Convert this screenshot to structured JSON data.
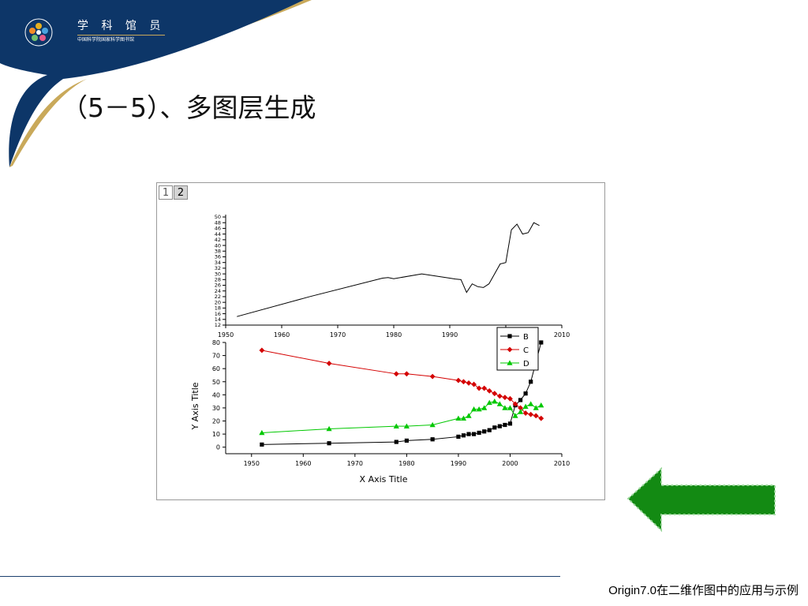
{
  "header": {
    "logo_name": "学 科 馆 员",
    "logo_sub": "中国科学院国家科学图书馆",
    "colors": {
      "banner": "#0d3668",
      "gold": "#c9a95a"
    }
  },
  "slide": {
    "title": "（5－5）、多图层生成",
    "footer": "Origin7.0在二维作图中的应用与示例"
  },
  "graph_window": {
    "layer_tabs": [
      "1",
      "2"
    ]
  },
  "nav": {
    "back_icon": "arrow-left-icon",
    "color": "#138a13"
  },
  "chart_data": [
    {
      "type": "line",
      "layer": 1,
      "xlim": [
        1950,
        2010
      ],
      "ylim": [
        12,
        50
      ],
      "x_ticks": [
        1950,
        1960,
        1970,
        1980,
        1990,
        2000,
        2010
      ],
      "y_ticks": [
        12,
        14,
        16,
        18,
        20,
        22,
        24,
        26,
        28,
        30,
        32,
        34,
        36,
        38,
        40,
        42,
        44,
        46,
        48,
        50
      ],
      "series": [
        {
          "x": [
            1952,
            1965,
            1978,
            1979,
            1980,
            1985,
            1990,
            1991,
            1992,
            1993,
            1994,
            1995,
            1996,
            1997,
            1998,
            1999,
            2000,
            2001,
            2002,
            2003,
            2004,
            2005,
            2006
          ],
          "y": [
            15,
            22,
            28.5,
            28.7,
            28.3,
            30,
            28.5,
            28.2,
            28,
            23.5,
            26.5,
            25.5,
            25.2,
            26.5,
            30,
            33.5,
            34,
            45.5,
            47.5,
            44,
            44.5,
            48,
            47
          ],
          "color": "#000000"
        }
      ]
    },
    {
      "type": "line",
      "layer": 2,
      "xlim": [
        1945,
        2010
      ],
      "ylim": [
        -5,
        80
      ],
      "x_ticks": [
        1950,
        1960,
        1970,
        1980,
        1990,
        2000,
        2010
      ],
      "y_ticks": [
        0,
        10,
        20,
        30,
        40,
        50,
        60,
        70,
        80
      ],
      "xlabel": "X Axis Title",
      "ylabel": "Y Axis Title",
      "legend": "top-right",
      "series": [
        {
          "name": "B",
          "color": "#000000",
          "marker": "square",
          "x": [
            1952,
            1965,
            1978,
            1980,
            1985,
            1990,
            1991,
            1992,
            1993,
            1994,
            1995,
            1996,
            1997,
            1998,
            1999,
            2000,
            2001,
            2002,
            2003,
            2004,
            2006
          ],
          "y": [
            2,
            3,
            4,
            5,
            6,
            8,
            9,
            10,
            10,
            11,
            12,
            13,
            15,
            16,
            17,
            18,
            32,
            36,
            41,
            50,
            80
          ]
        },
        {
          "name": "C",
          "color": "#d40000",
          "marker": "diamond",
          "x": [
            1952,
            1965,
            1978,
            1980,
            1985,
            1990,
            1991,
            1992,
            1993,
            1994,
            1995,
            1996,
            1997,
            1998,
            1999,
            2000,
            2001,
            2002,
            2003,
            2004,
            2005,
            2006
          ],
          "y": [
            74,
            64,
            56,
            56,
            54,
            51,
            50,
            49,
            48,
            45,
            45,
            43,
            41,
            39,
            38,
            37,
            33,
            30,
            26,
            25,
            24,
            22
          ]
        },
        {
          "name": "D",
          "color": "#00c800",
          "marker": "triangle",
          "x": [
            1952,
            1965,
            1978,
            1980,
            1985,
            1990,
            1991,
            1992,
            1993,
            1994,
            1995,
            1996,
            1997,
            1998,
            1999,
            2000,
            2001,
            2002,
            2003,
            2004,
            2005,
            2006
          ],
          "y": [
            11,
            14,
            16,
            16,
            17,
            22,
            22,
            24,
            29,
            29,
            30,
            34,
            35,
            33,
            30,
            30,
            24,
            27,
            31,
            33,
            30,
            32
          ]
        }
      ]
    }
  ]
}
